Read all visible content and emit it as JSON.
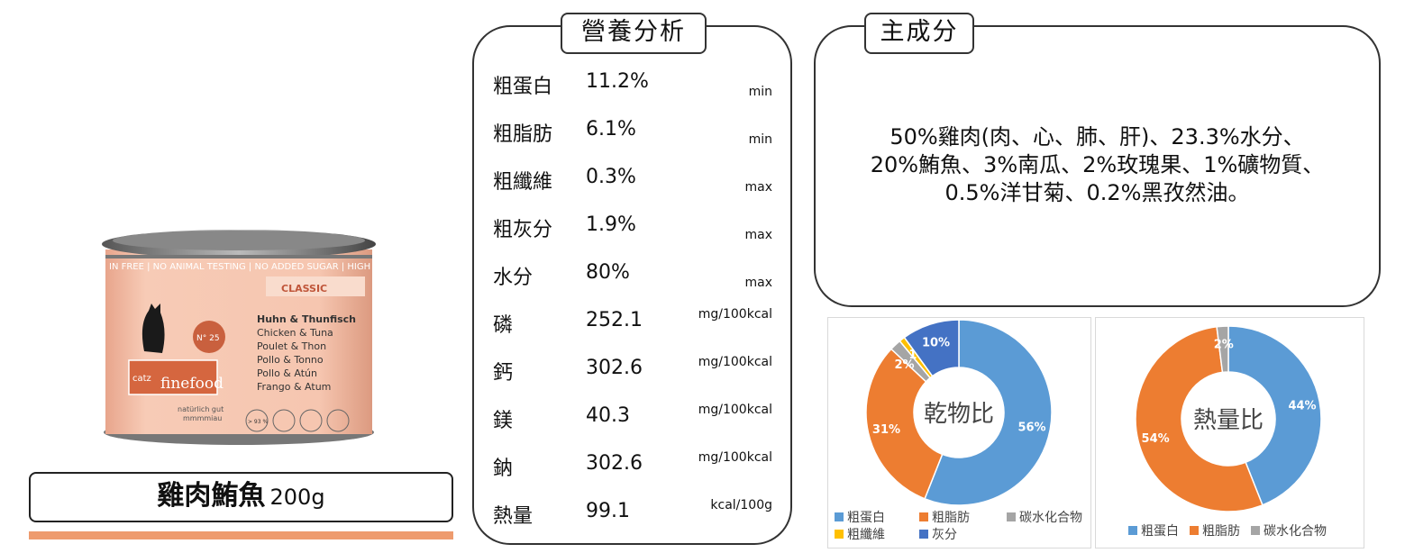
{
  "product": {
    "name": "雞肉鮪魚",
    "weight": "200g",
    "accent_color": "#EE9B6E",
    "can": {
      "band_text": "IN FREE | NO ANIMAL TESTING | NO ADDED SUGAR | HIGH PREM",
      "line": "CLASSIC",
      "number": "N° 25",
      "brand": "finefood",
      "brand_prefix": "catz",
      "slogan": [
        "natürlich gut",
        "mmmmiau"
      ],
      "flavors": [
        "Huhn & Thunfisch",
        "Chicken & Tuna",
        "Poulet & Thon",
        "Pollo & Tonno",
        "Pollo & Atún",
        "Frango & Atum"
      ],
      "badge": "> 93 %"
    }
  },
  "nutrition": {
    "title": "營養分析",
    "rows": [
      {
        "label": "粗蛋白",
        "value": "11.2%",
        "unit": "min"
      },
      {
        "label": "粗脂肪",
        "value": "6.1%",
        "unit": "min"
      },
      {
        "label": "粗纖維",
        "value": "0.3%",
        "unit": "max"
      },
      {
        "label": "粗灰分",
        "value": "1.9%",
        "unit": "max"
      },
      {
        "label": "水分",
        "value": "80%",
        "unit": "max"
      },
      {
        "label": "磷",
        "value": "252.1",
        "unit": "mg/100kcal"
      },
      {
        "label": "鈣",
        "value": "302.6",
        "unit": "mg/100kcal"
      },
      {
        "label": "鎂",
        "value": "40.3",
        "unit": "mg/100kcal"
      },
      {
        "label": "鈉",
        "value": "302.6",
        "unit": "mg/100kcal"
      },
      {
        "label": "熱量",
        "value": "99.1",
        "unit": "kcal/100g"
      }
    ]
  },
  "ingredients": {
    "title": "主成分",
    "lines": [
      "50%雞肉(肉、心、肺、肝)、23.3%水分、",
      "20%鮪魚、3%南瓜、2%玫瑰果、1%礦物質、",
      "0.5%洋甘菊、0.2%黑孜然油。"
    ]
  },
  "chart_data": [
    {
      "type": "pie",
      "donut": true,
      "title": "乾物比",
      "legend": "bottom",
      "categories": [
        "粗蛋白",
        "粗脂肪",
        "碳水化合物",
        "粗纖維",
        "灰分"
      ],
      "values": [
        56,
        31,
        2,
        1,
        10
      ],
      "labels": [
        "56%",
        "31%",
        "2%",
        "1%",
        "10%"
      ],
      "colors": [
        "#5B9BD5",
        "#ED7D31",
        "#A5A5A5",
        "#FFC000",
        "#4472C4"
      ]
    },
    {
      "type": "pie",
      "donut": true,
      "title": "熱量比",
      "legend": "bottom",
      "categories": [
        "粗蛋白",
        "粗脂肪",
        "碳水化合物"
      ],
      "values": [
        44,
        54,
        2
      ],
      "labels": [
        "44%",
        "54%",
        "2%"
      ],
      "colors": [
        "#5B9BD5",
        "#ED7D31",
        "#A5A5A5"
      ]
    }
  ]
}
